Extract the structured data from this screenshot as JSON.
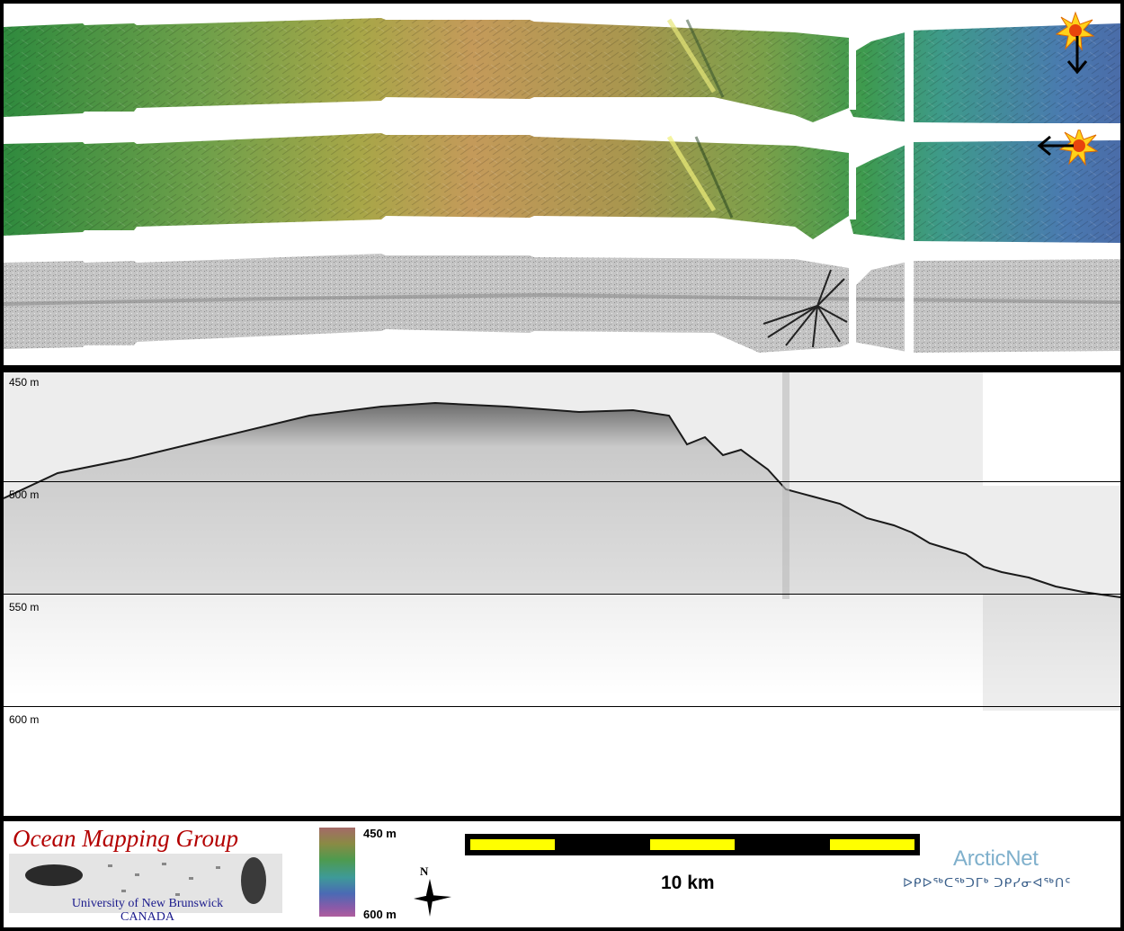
{
  "maps": {
    "strips": [
      {
        "name": "shaded-relief-illuminated-from-north",
        "illumination": "north",
        "icon": "sun-icon"
      },
      {
        "name": "shaded-relief-illuminated-from-east",
        "illumination": "east",
        "icon": "sun-icon"
      },
      {
        "name": "backscatter-mosaic",
        "colors": "grayscale"
      }
    ]
  },
  "profile": {
    "depth_labels": [
      "450 m",
      "500 m",
      "550 m",
      "600 m"
    ],
    "depth_values_m": [
      450,
      500,
      550,
      600
    ]
  },
  "footer": {
    "logo_title": "Ocean Mapping Group",
    "logo_line1": "University of New Brunswick",
    "logo_line2": "CANADA",
    "colorbar_top": "450 m",
    "colorbar_bottom": "600 m",
    "north_label": "N",
    "scale_label": "10 km",
    "partner_name": "ArcticNet",
    "partner_subtitle": "ᐅᑭᐅᖅᑕᖅᑐᒥᒃ ᑐᑭᓯᓂᐊᖅᑎᑦ"
  },
  "colors": {
    "relief_gradient": [
      "#2f8a3e",
      "#6fa04a",
      "#a8a648",
      "#c49a5a",
      "#a8964e",
      "#5a9c6a",
      "#3e8c9a",
      "#4a6ca8"
    ],
    "scale_fill": "#ffff00",
    "logo_red": "#b30000",
    "arctic_blue": "#7fb0cc"
  }
}
